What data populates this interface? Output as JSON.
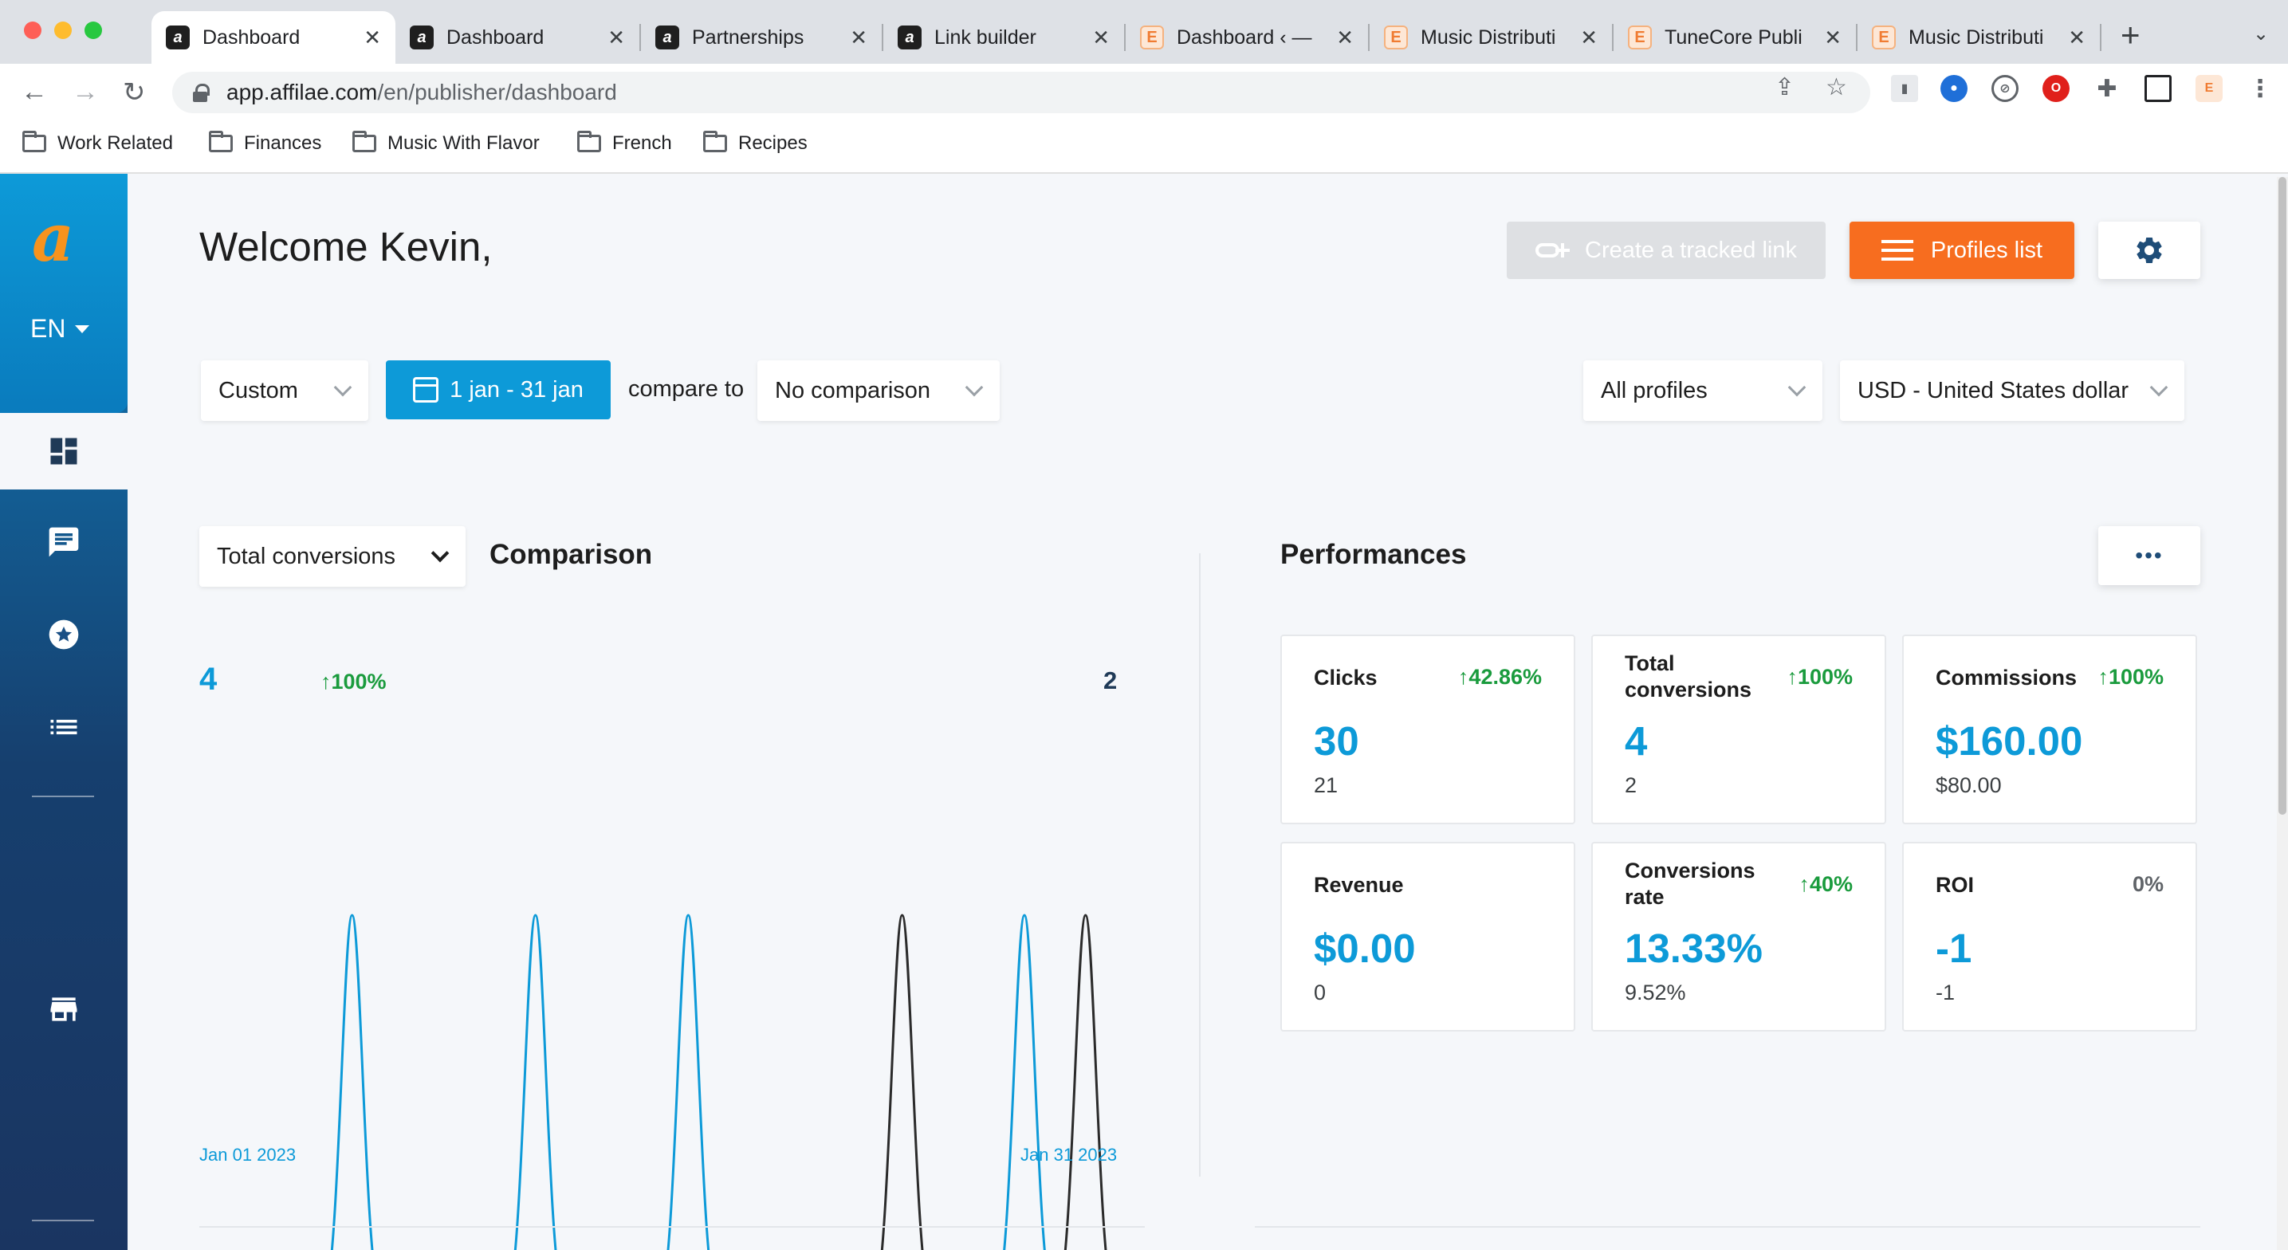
{
  "browser": {
    "tabs": [
      {
        "title": "Dashboard",
        "favicon": "affilae-icon",
        "active": true
      },
      {
        "title": "Dashboard",
        "favicon": "affilae-icon"
      },
      {
        "title": "Partnerships",
        "favicon": "affilae-icon"
      },
      {
        "title": "Link builder",
        "favicon": "affilae-icon"
      },
      {
        "title": "Dashboard ‹ —",
        "favicon": "elementor-icon"
      },
      {
        "title": "Music Distributi",
        "favicon": "elementor-icon"
      },
      {
        "title": "TuneCore Publi",
        "favicon": "elementor-icon"
      },
      {
        "title": "Music Distributi",
        "favicon": "elementor-icon"
      }
    ],
    "url_host": "app.affilae.com",
    "url_path": "/en/publisher/dashboard",
    "bookmarks": [
      "Work Related",
      "Finances",
      "Music With Flavor",
      "French",
      "Recipes"
    ]
  },
  "sidebar": {
    "logo": "a",
    "language": "EN",
    "items": [
      "dashboard-icon",
      "messages-icon",
      "star-badge-icon",
      "list-icon",
      "store-icon"
    ]
  },
  "header": {
    "welcome": "Welcome Kevin,",
    "create_link_label": "Create a tracked link",
    "profiles_label": "Profiles list"
  },
  "filters": {
    "period_type": "Custom",
    "date_range": "1 jan - 31 jan",
    "compare_to_label": "compare to",
    "comparison": "No comparison",
    "profiles": "All profiles",
    "currency": "USD - United States dollar"
  },
  "comparison_panel": {
    "metric": "Total conversions",
    "title": "Comparison",
    "current_total": "4",
    "delta": "100%",
    "previous_total": "2",
    "start_date": "Jan 01 2023",
    "end_date": "Jan 31 2023"
  },
  "chart_data": {
    "type": "line",
    "title": "",
    "x_range": [
      "Jan 01 2023",
      "Jan 31 2023"
    ],
    "days": 31,
    "series": [
      {
        "name": "",
        "color": "#0d9ad8",
        "peaks_day": [
          6,
          12,
          17,
          28
        ],
        "peak_value": 1
      },
      {
        "name": "",
        "color": "#2b2b2b",
        "peaks_day": [
          24,
          30
        ],
        "peak_value": 1
      }
    ],
    "ylim": [
      0,
      1
    ]
  },
  "performances": {
    "title": "Performances",
    "more_label": "•••",
    "cards": [
      {
        "label": "Clicks",
        "delta": "42.86%",
        "value": "30",
        "previous": "21"
      },
      {
        "label": "Total conversions",
        "delta": "100%",
        "value": "4",
        "previous": "2"
      },
      {
        "label": "Commissions",
        "delta": "100%",
        "value": "$160.00",
        "previous": "$80.00"
      },
      {
        "label": "Revenue",
        "delta": "",
        "value": "$0.00",
        "previous": "0"
      },
      {
        "label": "Conversions rate",
        "delta": "40%",
        "value": "13.33%",
        "previous": "9.52%"
      },
      {
        "label": "ROI",
        "delta": "0%",
        "value": "-1",
        "previous": "-1"
      }
    ]
  },
  "colors": {
    "primary": "#0d9ad8",
    "accent": "#f76d1f",
    "positive": "#1a9b3d"
  }
}
